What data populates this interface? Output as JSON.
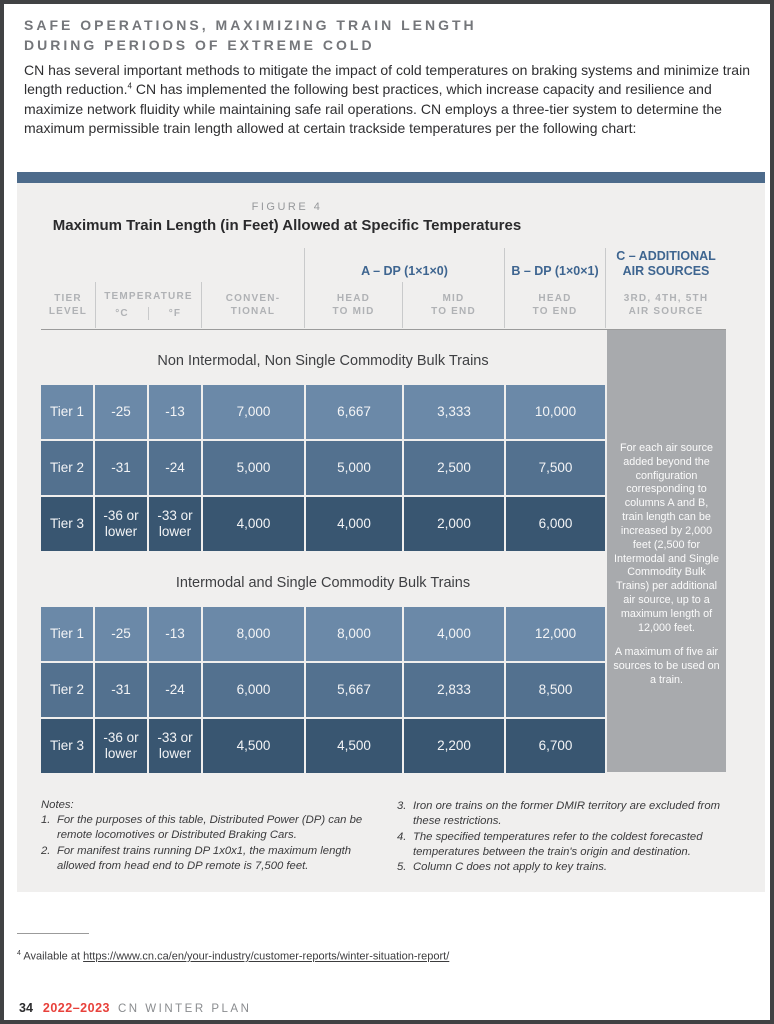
{
  "page": {
    "heading_line1": "SAFE OPERATIONS, MAXIMIZING TRAIN LENGTH",
    "heading_line2": "DURING PERIODS OF EXTREME COLD",
    "intro": {
      "part1": "CN has several important methods to mitigate the impact of cold temperatures on braking systems and minimize train length reduction.",
      "sup": "4",
      "part2": " CN has implemented the following best practices, which increase capacity and resilience and maximize network fluidity while maintaining safe rail operations. CN employs a three-tier system to determine the maximum permissible train length allowed at certain trackside temperatures per the following chart:"
    }
  },
  "figure": {
    "label": "FIGURE 4",
    "title": "Maximum Train Length (in Feet) Allowed at Specific Temperatures",
    "groups": {
      "a": "A – DP (1×1×0)",
      "b": "B – DP (1×0×1)",
      "c": [
        "C – ADDITIONAL",
        "AIR SOURCES"
      ]
    },
    "headers": {
      "tier": [
        "TIER",
        "LEVEL"
      ],
      "temperature": "TEMPERATURE",
      "celsius": "°C",
      "fahrenheit": "°F",
      "conventional": [
        "CONVEN-",
        "TIONAL"
      ],
      "head_to_mid": [
        "HEAD",
        "TO MID"
      ],
      "mid_to_end": [
        "MID",
        "TO END"
      ],
      "head_to_end": [
        "HEAD",
        "TO END"
      ],
      "air_source": [
        "3RD, 4TH, 5TH",
        "AIR SOURCE"
      ]
    },
    "section1": {
      "title": "Non Intermodal, Non Single Commodity Bulk Trains",
      "rows": [
        [
          "Tier 1",
          "-25",
          "-13",
          "7,000",
          "6,667",
          "3,333",
          "10,000"
        ],
        [
          "Tier 2",
          "-31",
          "-24",
          "5,000",
          "5,000",
          "2,500",
          "7,500"
        ],
        [
          "Tier 3",
          "-36 or lower",
          "-33 or lower",
          "4,000",
          "4,000",
          "2,000",
          "6,000"
        ]
      ]
    },
    "section2": {
      "title": "Intermodal and Single Commodity Bulk Trains",
      "rows": [
        [
          "Tier 1",
          "-25",
          "-13",
          "8,000",
          "8,000",
          "4,000",
          "12,000"
        ],
        [
          "Tier 2",
          "-31",
          "-24",
          "6,000",
          "5,667",
          "2,833",
          "8,500"
        ],
        [
          "Tier 3",
          "-36 or lower",
          "-33 or lower",
          "4,500",
          "4,500",
          "2,200",
          "6,700"
        ]
      ]
    },
    "column_c": {
      "para1": "For each air source added beyond the configuration corresponding to columns A and B, train length can be increased by 2,000 feet (2,500 for Intermodal and Single Commodity Bulk Trains) per additional air source, up to a maximum length of 12,000 feet.",
      "para2": "A maximum of five air sources to be used on a train."
    }
  },
  "notes": {
    "label": "Notes:",
    "left": [
      {
        "num": "1.",
        "text": "For the purposes of this table, Distributed Power (DP) can be remote locomotives or Distributed Braking Cars."
      },
      {
        "num": "2.",
        "text": "For manifest trains running DP 1x0x1, the maximum length allowed from head end to DP remote is 7,500 feet."
      }
    ],
    "right": [
      {
        "num": "3.",
        "text": "Iron ore trains on the former DMIR territory are excluded from these restrictions."
      },
      {
        "num": "4.",
        "text": "The specified temperatures refer to the coldest forecasted temperatures between the train's origin and destination."
      },
      {
        "num": "5.",
        "text": "Column C does not apply to key trains."
      }
    ]
  },
  "footnote": {
    "sup": "4",
    "prefix": " Available at ",
    "link": "https://www.cn.ca/en/your-industry/customer-reports/winter-situation-report/"
  },
  "footer": {
    "page_number": "34",
    "edition": "2022–2023",
    "title": "CN WINTER PLAN"
  },
  "colors": {
    "bar_blue": "#4d6b8b",
    "header_blue": "#3e6590",
    "tier1_row": "#6b89a8",
    "tier2_row": "#53718f",
    "tier3_row": "#395671",
    "column_c_gray": "#a8aaad",
    "figure_bg": "#f0efee",
    "accent_red": "#e8413b"
  }
}
